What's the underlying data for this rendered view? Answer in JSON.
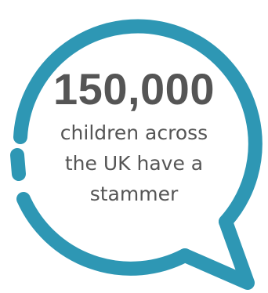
{
  "infographic": {
    "stat_value": "150,000",
    "caption_lines": [
      "children across",
      "the UK have a",
      "stammer"
    ]
  },
  "colors": {
    "bubble_outline": "#2E97B4",
    "text": "#555555",
    "background": "#FFFFFF"
  },
  "icons": {
    "bubble": "speech-bubble-icon"
  }
}
